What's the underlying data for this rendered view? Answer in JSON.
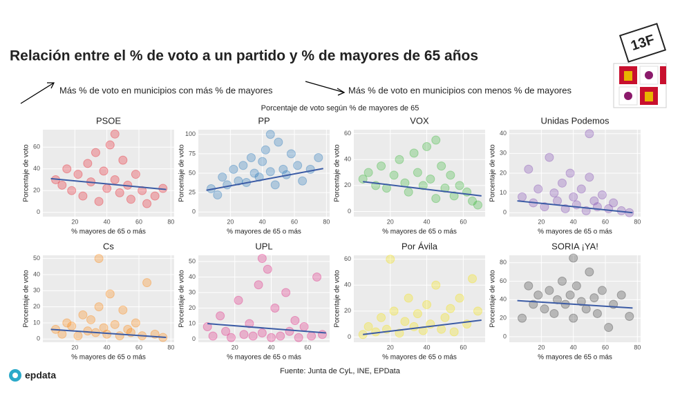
{
  "title": "Relación entre el % de voto a un partido y % de mayores de 65 años",
  "annotations": [
    "Más % de voto en municipios con más % de mayores",
    "Más % de voto en municipios con menos % de mayores"
  ],
  "figure_title": "Porcentaje de voto según % de mayores de 65",
  "source": "Fuente: Junta de CyL, INE, EPData",
  "logo": "epdata",
  "badge": "13F",
  "chart_data": [
    {
      "type": "scatter",
      "title": "PSOE",
      "x_label": "% mayores de 65 o más",
      "y_label": "Porcentaje de voto",
      "color": "#e8131f",
      "xlim": [
        0,
        82
      ],
      "xticks": [
        20,
        40,
        60,
        80
      ],
      "ylim": [
        -4,
        76
      ],
      "yticks": [
        0,
        20,
        40,
        60
      ],
      "x": [
        8,
        12,
        15,
        18,
        22,
        25,
        28,
        30,
        33,
        35,
        38,
        40,
        42,
        45,
        48,
        50,
        53,
        55,
        58,
        62,
        65,
        70,
        75,
        45
      ],
      "y": [
        30,
        25,
        40,
        20,
        35,
        15,
        45,
        28,
        55,
        10,
        38,
        22,
        62,
        30,
        18,
        48,
        25,
        12,
        35,
        20,
        8,
        15,
        22,
        72
      ],
      "trend": {
        "x": [
          5,
          77
        ],
        "y": [
          31,
          21
        ]
      }
    },
    {
      "type": "scatter",
      "title": "PP",
      "x_label": "% mayores de 65 o más",
      "y_label": "Porcentaje de voto",
      "color": "#1a6fb8",
      "xlim": [
        0,
        82
      ],
      "xticks": [
        20,
        40,
        60,
        80
      ],
      "ylim": [
        -6,
        106
      ],
      "yticks": [
        0,
        25,
        50,
        75,
        100
      ],
      "x": [
        8,
        12,
        15,
        18,
        22,
        25,
        28,
        30,
        33,
        35,
        38,
        40,
        42,
        45,
        48,
        50,
        53,
        55,
        58,
        62,
        65,
        70,
        75,
        45
      ],
      "y": [
        30,
        22,
        45,
        35,
        55,
        40,
        60,
        38,
        70,
        50,
        45,
        65,
        80,
        52,
        35,
        90,
        55,
        48,
        75,
        60,
        40,
        55,
        70,
        100
      ],
      "trend": {
        "x": [
          5,
          78
        ],
        "y": [
          28,
          56
        ]
      }
    },
    {
      "type": "scatter",
      "title": "VOX",
      "x_label": "% mayores de 65 o más",
      "y_label": "Porcentaje de voto",
      "color": "#2fb52f",
      "xlim": [
        0,
        72
      ],
      "xticks": [
        20,
        40,
        60
      ],
      "ylim": [
        -4,
        63
      ],
      "yticks": [
        0,
        20,
        40,
        60
      ],
      "x": [
        5,
        8,
        12,
        15,
        18,
        22,
        25,
        28,
        30,
        33,
        35,
        38,
        40,
        42,
        45,
        48,
        50,
        53,
        55,
        58,
        62,
        65,
        68,
        45
      ],
      "y": [
        25,
        30,
        20,
        35,
        18,
        28,
        40,
        22,
        15,
        45,
        30,
        20,
        50,
        25,
        10,
        35,
        18,
        28,
        12,
        20,
        15,
        8,
        5,
        55
      ],
      "trend": {
        "x": [
          5,
          70
        ],
        "y": [
          23,
          12
        ]
      }
    },
    {
      "type": "scatter",
      "title": "Unidas Podemos",
      "x_label": "% mayores de 65 o más",
      "y_label": "Porcentaje de voto",
      "color": "#7a3fb0",
      "xlim": [
        0,
        82
      ],
      "xticks": [
        20,
        40,
        60,
        80
      ],
      "ylim": [
        -2,
        42
      ],
      "yticks": [
        0,
        10,
        20,
        30,
        40
      ],
      "x": [
        8,
        12,
        15,
        18,
        22,
        25,
        28,
        30,
        33,
        35,
        38,
        40,
        42,
        45,
        48,
        50,
        53,
        55,
        58,
        62,
        65,
        70,
        75,
        50
      ],
      "y": [
        8,
        22,
        5,
        12,
        3,
        28,
        10,
        6,
        15,
        2,
        20,
        8,
        4,
        12,
        1,
        18,
        6,
        3,
        9,
        2,
        5,
        1,
        0,
        40
      ],
      "trend": {
        "x": [
          5,
          77
        ],
        "y": [
          6,
          0
        ]
      }
    },
    {
      "type": "scatter",
      "title": "Cs",
      "x_label": "% mayores de 65 o más",
      "y_label": "Porcentaje de voto",
      "color": "#ff8000",
      "xlim": [
        0,
        82
      ],
      "xticks": [
        20,
        40,
        60,
        80
      ],
      "ylim": [
        -2,
        52
      ],
      "yticks": [
        0,
        10,
        20,
        30,
        40,
        50
      ],
      "x": [
        8,
        12,
        15,
        18,
        22,
        25,
        28,
        30,
        33,
        35,
        38,
        40,
        42,
        45,
        48,
        50,
        53,
        55,
        58,
        62,
        65,
        70,
        75,
        35
      ],
      "y": [
        6,
        3,
        10,
        8,
        2,
        15,
        5,
        12,
        4,
        20,
        7,
        3,
        28,
        9,
        2,
        18,
        6,
        4,
        10,
        2,
        35,
        3,
        1,
        50
      ],
      "trend": {
        "x": [
          5,
          77
        ],
        "y": [
          6,
          1
        ]
      }
    },
    {
      "type": "scatter",
      "title": "UPL",
      "x_label": "% mayores de 65 o más",
      "y_label": "Porcentaje de voto",
      "color": "#e0187a",
      "xlim": [
        0,
        72
      ],
      "xticks": [
        20,
        40,
        60
      ],
      "ylim": [
        -2,
        54
      ],
      "yticks": [
        0,
        10,
        20,
        30,
        40,
        50
      ],
      "x": [
        5,
        8,
        12,
        15,
        18,
        22,
        25,
        28,
        30,
        33,
        35,
        38,
        40,
        42,
        45,
        48,
        50,
        53,
        55,
        58,
        62,
        65,
        68,
        35
      ],
      "y": [
        8,
        2,
        15,
        5,
        1,
        25,
        3,
        10,
        2,
        35,
        4,
        45,
        1,
        20,
        2,
        30,
        5,
        12,
        1,
        8,
        2,
        40,
        3,
        52
      ],
      "trend": {
        "x": [
          5,
          70
        ],
        "y": [
          10,
          4
        ]
      }
    },
    {
      "type": "scatter",
      "title": "Por Ávila",
      "x_label": "% mayores de 65 o más",
      "y_label": "Porcentaje de voto",
      "color": "#f5e100",
      "xlim": [
        0,
        72
      ],
      "xticks": [
        20,
        40,
        60
      ],
      "ylim": [
        -4,
        63
      ],
      "yticks": [
        0,
        20,
        40,
        60
      ],
      "x": [
        5,
        8,
        12,
        15,
        18,
        22,
        25,
        28,
        30,
        33,
        35,
        38,
        40,
        42,
        45,
        48,
        50,
        53,
        55,
        58,
        62,
        65,
        68,
        20
      ],
      "y": [
        2,
        8,
        4,
        15,
        6,
        20,
        3,
        12,
        30,
        8,
        18,
        5,
        25,
        10,
        40,
        6,
        15,
        22,
        4,
        30,
        10,
        45,
        20,
        60
      ],
      "trend": {
        "x": [
          5,
          70
        ],
        "y": [
          2,
          13
        ]
      }
    },
    {
      "type": "scatter",
      "title": "SORIA ¡YA!",
      "x_label": "% mayores de 65 o más",
      "y_label": "Porcentaje de voto",
      "color": "#333333",
      "xlim": [
        0,
        82
      ],
      "xticks": [
        20,
        40,
        60,
        80
      ],
      "ylim": [
        -6,
        88
      ],
      "yticks": [
        0,
        20,
        40,
        60,
        80
      ],
      "x": [
        8,
        12,
        15,
        18,
        22,
        25,
        28,
        30,
        33,
        35,
        38,
        40,
        42,
        45,
        48,
        50,
        53,
        55,
        58,
        62,
        65,
        70,
        75,
        40
      ],
      "y": [
        20,
        55,
        35,
        45,
        30,
        50,
        25,
        40,
        60,
        35,
        45,
        20,
        55,
        38,
        30,
        70,
        42,
        25,
        50,
        10,
        35,
        45,
        22,
        85
      ],
      "trend": {
        "x": [
          5,
          77
        ],
        "y": [
          39,
          31
        ]
      }
    }
  ]
}
